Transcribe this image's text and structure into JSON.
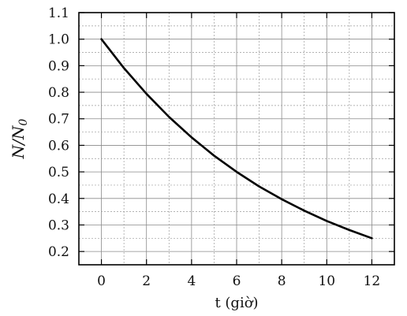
{
  "chart_data": {
    "type": "line",
    "title": "",
    "xlabel": "t (giờ)",
    "ylabel": "N/N0",
    "ylabel_parts": {
      "main": "N/N",
      "sub": "0"
    },
    "xlim": [
      -1,
      13
    ],
    "ylim": [
      0.15,
      1.1
    ],
    "x_ticks": [
      0,
      2,
      4,
      6,
      8,
      10,
      12
    ],
    "x_tick_labels": [
      "0",
      "2",
      "4",
      "6",
      "8",
      "10",
      "12"
    ],
    "y_ticks": [
      0.2,
      0.3,
      0.4,
      0.5,
      0.6,
      0.7,
      0.8,
      0.9,
      1.0,
      1.1
    ],
    "y_tick_labels": [
      "0.2",
      "0.3",
      "0.4",
      "0.5",
      "0.6",
      "0.7",
      "0.8",
      "0.9",
      "1.0",
      "1.1"
    ],
    "grid": true,
    "series": [
      {
        "x": [
          0,
          1,
          2,
          3,
          4,
          5,
          6,
          7,
          8,
          9,
          10,
          11,
          12
        ],
        "y": [
          1.0,
          0.891,
          0.794,
          0.707,
          0.63,
          0.561,
          0.5,
          0.445,
          0.397,
          0.354,
          0.315,
          0.281,
          0.25
        ],
        "color": "#000000"
      }
    ]
  }
}
